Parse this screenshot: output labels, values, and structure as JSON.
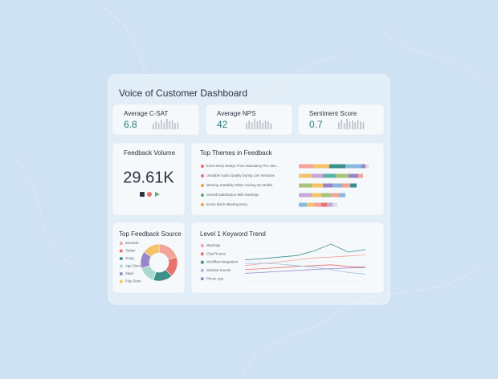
{
  "title": "Voice of Customer Dashboard",
  "kpis": [
    {
      "label": "Average C-SAT",
      "value": 6.8,
      "bars": [
        6,
        9,
        7,
        11,
        8,
        12,
        9,
        10,
        7,
        8
      ]
    },
    {
      "label": "Average NPS",
      "value": 42,
      "bars": [
        7,
        10,
        8,
        12,
        9,
        11,
        8,
        10,
        9,
        7
      ]
    },
    {
      "label": "Sentiment Score",
      "value": 0.7,
      "bars": [
        8,
        11,
        7,
        12,
        9,
        10,
        8,
        11,
        9,
        8
      ]
    }
  ],
  "feedback_volume": {
    "title": "Feedback Volume",
    "value": "29.61K"
  },
  "themes": {
    "title": "Top Themes in Feedback",
    "items": [
      {
        "label": "Event Entry Delays From Mandatory Pre-Join...",
        "dot": "#e8736c",
        "values": [
          18,
          20,
          20,
          20,
          5,
          4
        ],
        "colors": [
          "#f2a49b",
          "#f4c26b",
          "#3d8f88",
          "#8ab8dd",
          "#9a85c9",
          "#d9dde3"
        ]
      },
      {
        "label": "Unstable Audio Quality During Live Sessions",
        "dot": "#e8736c",
        "values": [
          16,
          14,
          16,
          16,
          12,
          6
        ],
        "colors": [
          "#f4c26b",
          "#c7a6d8",
          "#5bb3a6",
          "#a5c47a",
          "#9a85c9",
          "#f2a49b"
        ]
      },
      {
        "label": "Meeting Instability When Joining On Mobile",
        "dot": "#f0a34a",
        "values": [
          16,
          14,
          12,
          12,
          10,
          8
        ],
        "colors": [
          "#a5c47a",
          "#f4c26b",
          "#9a85c9",
          "#8ab8dd",
          "#f2a49b",
          "#3d8f88"
        ]
      },
      {
        "label": "Overall Satisfaction With Meetings",
        "dot": "#5bb36b",
        "values": [
          16,
          12,
          12,
          10,
          8
        ],
        "colors": [
          "#c7a6d8",
          "#f4c26b",
          "#a5c47a",
          "#f2a49b",
          "#8ab8dd"
        ]
      },
      {
        "label": "Errors Block Meeting Entry",
        "dot": "#f0a34a",
        "values": [
          10,
          9,
          9,
          7,
          7,
          6
        ],
        "colors": [
          "#8ab8dd",
          "#f4c26b",
          "#f2a49b",
          "#e8736c",
          "#c7a6d8",
          "#d9dde3"
        ]
      }
    ]
  },
  "source": {
    "title": "Top Feedback Source",
    "type": "pie",
    "labels": [
      "Zendesk",
      "Twitter",
      "Gong",
      "App Store",
      "Slack",
      "Play Store"
    ],
    "values": [
      20,
      18,
      17,
      15,
      15,
      15
    ],
    "colors": [
      "#f2a49b",
      "#e8736c",
      "#3d8f88",
      "#a9d8cf",
      "#9a85c9",
      "#f4c26b"
    ]
  },
  "trend": {
    "title": "Level 1 Keyword Trend",
    "type": "line",
    "ylim": [
      0,
      100
    ],
    "series": [
      {
        "name": "Meetings",
        "color": "#f2a49b",
        "values": [
          40,
          45,
          50,
          55,
          60,
          62,
          65,
          68
        ]
      },
      {
        "name": "Chat Rooms",
        "color": "#e8736c",
        "values": [
          30,
          32,
          35,
          38,
          40,
          42,
          38,
          36
        ]
      },
      {
        "name": "Workflow Integration",
        "color": "#3d8f88",
        "values": [
          55,
          58,
          62,
          66,
          78,
          96,
          75,
          82
        ]
      },
      {
        "name": "Webinar Events",
        "color": "#9bbfe0",
        "values": [
          45,
          46,
          44,
          40,
          36,
          30,
          22,
          18
        ]
      },
      {
        "name": "Phone App",
        "color": "#9a85c9",
        "values": [
          20,
          22,
          25,
          28,
          30,
          32,
          34,
          35
        ]
      }
    ]
  }
}
